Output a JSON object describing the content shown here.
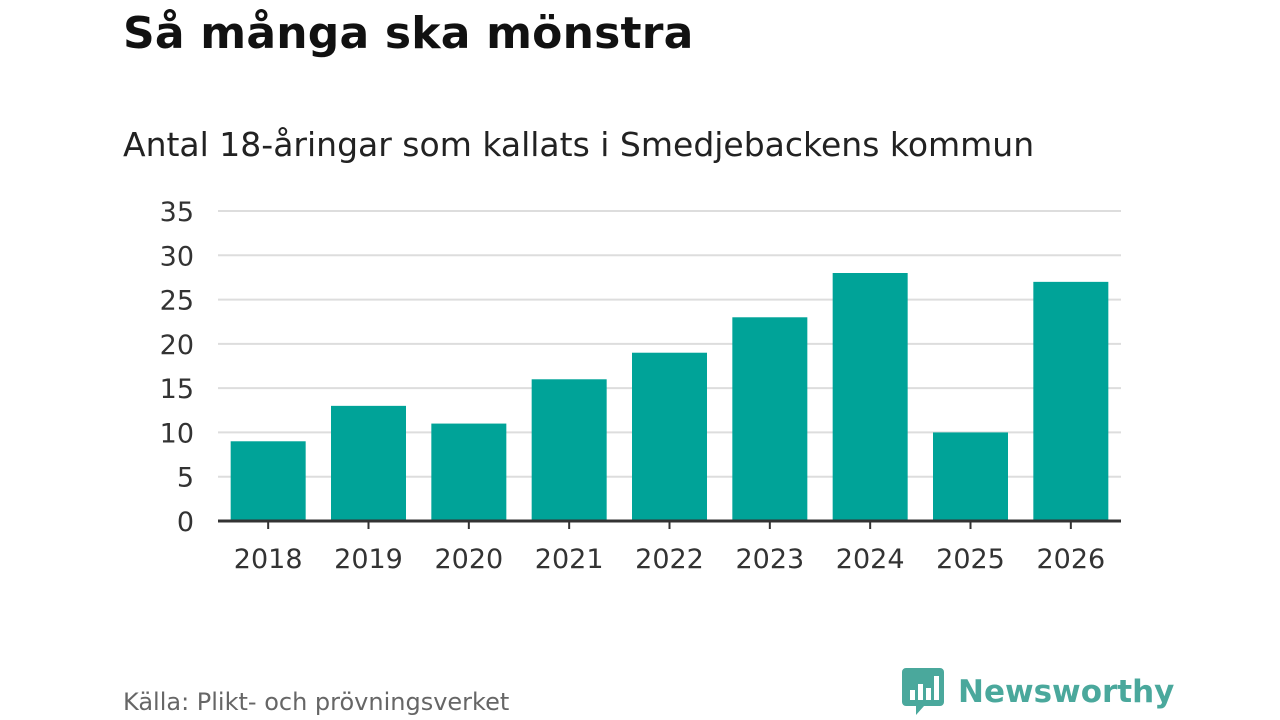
{
  "title": "Så många ska mönstra",
  "subtitle": "Antal 18-åringar som kallats i Smedjebackens kommun",
  "source": "Källa: Plikt- och prövningsverket",
  "brand": {
    "name": "Newsworthy",
    "icon": "bar-chart-speech-bubble-icon",
    "color": "#4aa89c"
  },
  "chart_data": {
    "type": "bar",
    "categories": [
      "2018",
      "2019",
      "2020",
      "2021",
      "2022",
      "2023",
      "2024",
      "2025",
      "2026"
    ],
    "values": [
      9,
      13,
      11,
      16,
      19,
      23,
      28,
      10,
      27
    ],
    "title": "Så många ska mönstra",
    "subtitle": "Antal 18-åringar som kallats i Smedjebackens kommun",
    "xlabel": "",
    "ylabel": "",
    "ylim": [
      0,
      35
    ],
    "yticks": [
      0,
      5,
      10,
      15,
      20,
      25,
      30,
      35
    ],
    "grid": true,
    "legend": "none",
    "bar_color": "#00a398",
    "grid_color": "#dddddd",
    "axis_color": "#333333"
  }
}
